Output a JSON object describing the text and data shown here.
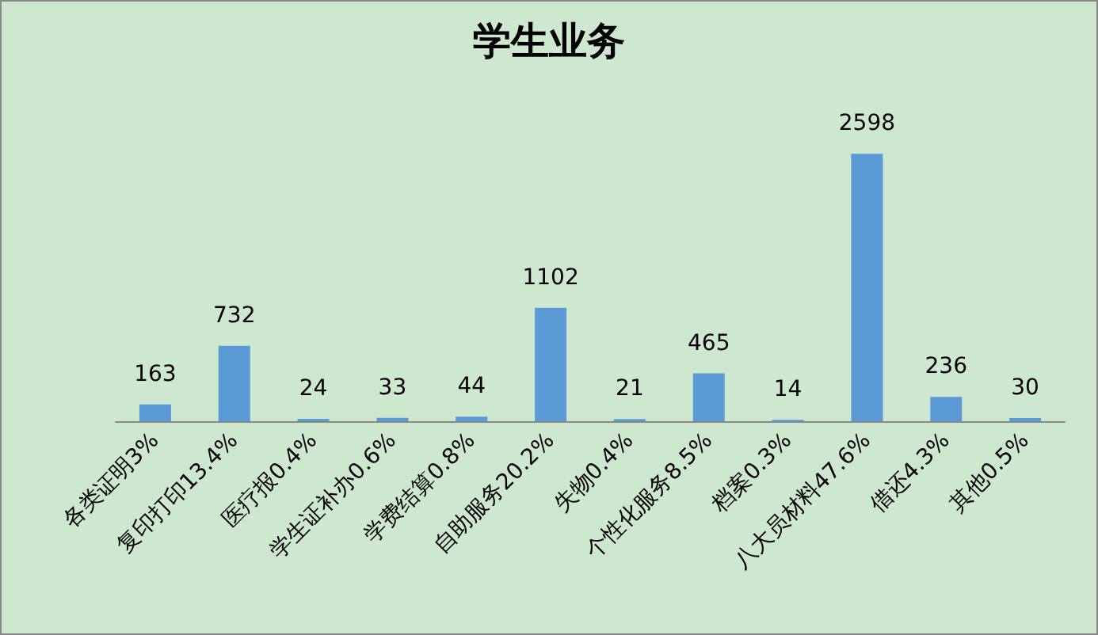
{
  "chart_data": {
    "type": "bar",
    "title": "学生业务",
    "categories": [
      "各类证明3%",
      "复印打印13.4%",
      "医疗报0.4%",
      "学生证补办0.6%",
      "学费结算0.8%",
      "自助服务20.2%",
      "失物0.4%",
      "个性化服务8.5%",
      "档案0.3%",
      "八大员材料47.6%",
      "借还4.3%",
      "其他0.5%"
    ],
    "values": [
      163,
      732,
      24,
      33,
      44,
      1102,
      21,
      465,
      14,
      2598,
      236,
      30
    ],
    "color": "#5b9bd5",
    "data_labels": true
  }
}
